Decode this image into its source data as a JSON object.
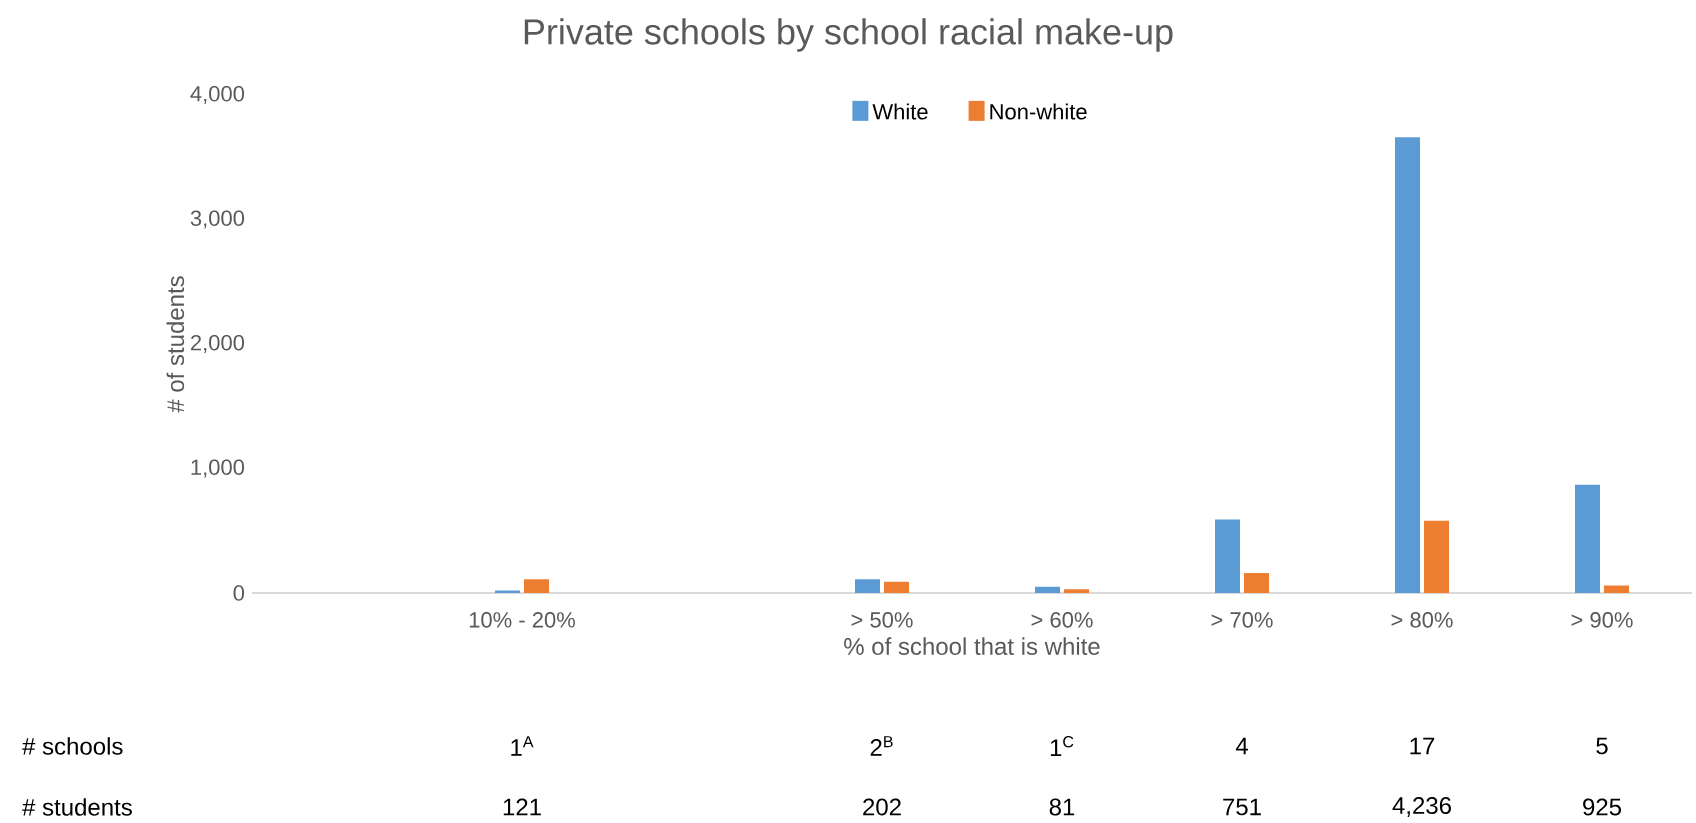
{
  "chart_data": {
    "type": "bar",
    "title": "Private schools by school racial make-up",
    "xlabel": "% of school that is white",
    "ylabel": "# of students",
    "categories": [
      null,
      "10% - 20%",
      null,
      "> 50%",
      "> 60%",
      "> 70%",
      "> 80%",
      "> 90%"
    ],
    "series": [
      {
        "name": "White",
        "color": "#5b9bd5",
        "values": [
          null,
          20,
          null,
          110,
          50,
          590,
          3660,
          870
        ]
      },
      {
        "name": "Non-white",
        "color": "#ed7d31",
        "values": [
          null,
          110,
          null,
          90,
          30,
          160,
          580,
          60
        ]
      }
    ],
    "ylim": [
      0,
      4000
    ],
    "yticks": [
      {
        "value": 0,
        "label": "0"
      },
      {
        "value": 1000,
        "label": "1,000"
      },
      {
        "value": 2000,
        "label": "2,000"
      },
      {
        "value": 3000,
        "label": "3,000"
      },
      {
        "value": 4000,
        "label": "4,000"
      }
    ],
    "grid": false,
    "legend": "top",
    "annotations": [
      "# schools",
      "1$^{A}$",
      "2$^{B}$",
      "1$^{C}$",
      "4",
      "17",
      "5",
      "# students",
      "121",
      "202",
      "81",
      "751",
      "4,236",
      "925"
    ]
  }
}
